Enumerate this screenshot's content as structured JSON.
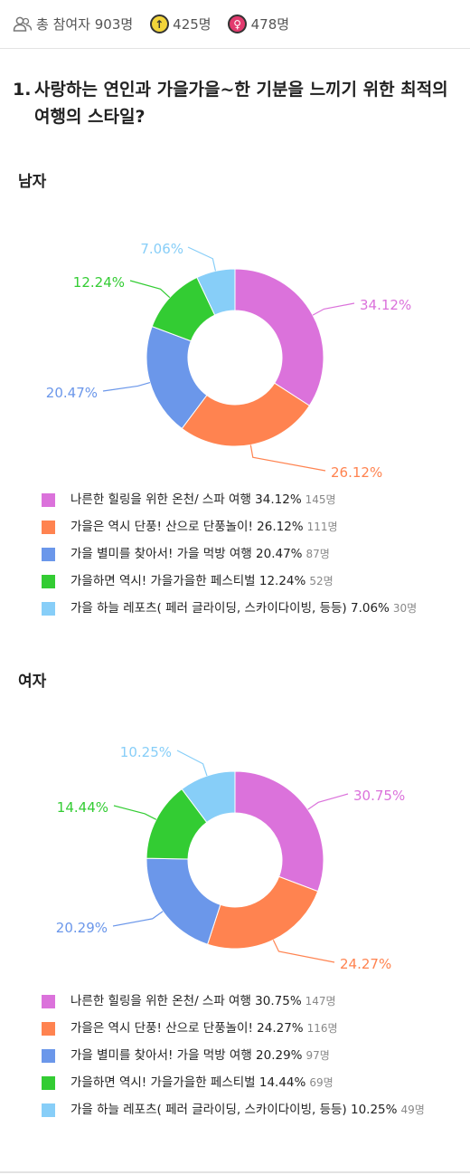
{
  "header": {
    "participants_label": "총 참여자 903명",
    "male_count": "425명",
    "female_count": "478명"
  },
  "question": {
    "number": "1.",
    "text": "사랑하는 연인과 가을가을~한 기분을 느끼기 위한 최적의 여행의 스타일?"
  },
  "sections": [
    {
      "label": "남자"
    },
    {
      "label": "여자"
    }
  ],
  "colors": [
    "#db72db",
    "#ff8350",
    "#6b97ea",
    "#33cc33",
    "#87cef8"
  ],
  "chart_data": [
    {
      "type": "pie",
      "title": "남자",
      "categories": [
        "나른한 힐링을 위한 온천/ 스파 여행",
        "가을은 역시 단풍! 산으로 단풍놀이!",
        "가을 별미를 찾아서! 가을 먹방 여행",
        "가을하면 역시! 가을가을한 페스티벌",
        "가을 하늘 레포츠( 페러 글라이딩, 스카이다이빙, 등등)"
      ],
      "values": [
        34.12,
        26.12,
        20.47,
        12.24,
        7.06
      ],
      "value_labels": [
        "34.12%",
        "26.12%",
        "20.47%",
        "12.24%",
        "7.06%"
      ],
      "counts": [
        "145명",
        "111명",
        "87명",
        "52명",
        "30명"
      ]
    },
    {
      "type": "pie",
      "title": "여자",
      "categories": [
        "나른한 힐링을 위한 온천/ 스파 여행",
        "가을은 역시 단풍! 산으로 단풍놀이!",
        "가을 별미를 찾아서! 가을 먹방 여행",
        "가을하면 역시! 가을가을한 페스티벌",
        "가을 하늘 레포츠( 페러 글라이딩, 스카이다이빙, 등등)"
      ],
      "values": [
        30.75,
        24.27,
        20.29,
        14.44,
        10.25
      ],
      "value_labels": [
        "30.75%",
        "24.27%",
        "20.29%",
        "14.44%",
        "10.25%"
      ],
      "counts": [
        "147명",
        "116명",
        "97명",
        "69명",
        "49명"
      ]
    }
  ]
}
